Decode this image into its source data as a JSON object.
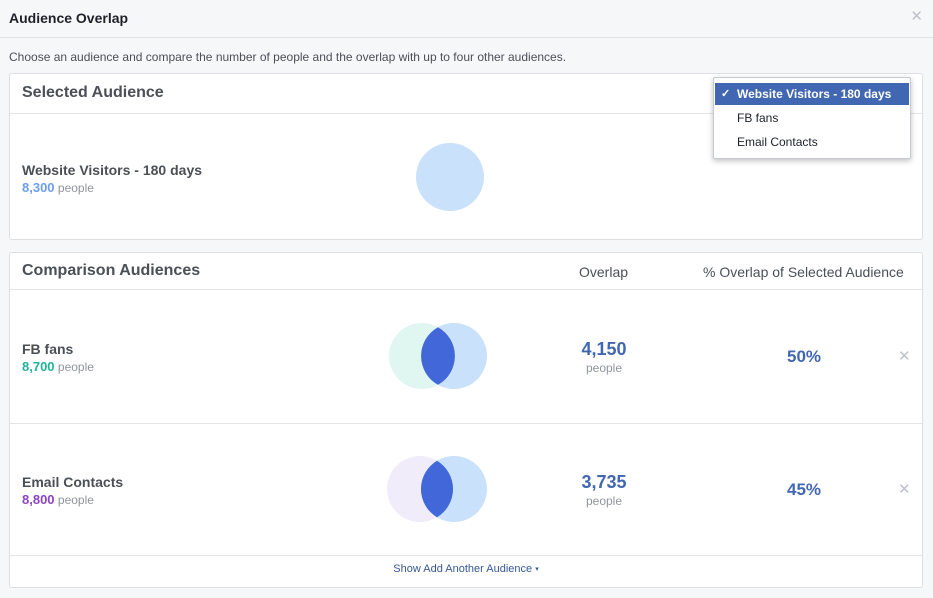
{
  "header": {
    "title": "Audience Overlap",
    "close_icon": "close-icon"
  },
  "intro": "Choose an audience and compare the number of people and the overlap with up to four other audiences.",
  "selected": {
    "title": "Selected Audience",
    "audience": {
      "name": "Website Visitors - 180 days",
      "count": "8,300",
      "unit": "people",
      "color": "#6d9eeb"
    },
    "circle_color": "#c9e1fb"
  },
  "dropdown": {
    "options": [
      {
        "label": "Website Visitors - 180 days",
        "selected": true
      },
      {
        "label": "FB fans",
        "selected": false
      },
      {
        "label": "Email Contacts",
        "selected": false
      }
    ]
  },
  "comparison": {
    "title": "Comparison Audiences",
    "col_overlap": "Overlap",
    "col_pct": "% Overlap of Selected Audience",
    "rows": [
      {
        "name": "FB fans",
        "count": "8,700",
        "unit": "people",
        "color": "#1fb39a",
        "circle_color": "#e0f6f1",
        "overlap": "4,150",
        "overlap_unit": "people",
        "pct": "50%"
      },
      {
        "name": "Email Contacts",
        "count": "8,800",
        "unit": "people",
        "color": "#8b44c4",
        "circle_color": "#f1ecf9",
        "overlap": "3,735",
        "overlap_unit": "people",
        "pct": "45%"
      }
    ],
    "footer_link": "Show Add Another Audience"
  },
  "colors": {
    "accent": "#4267b2",
    "selected_circle": "#c9e1fb",
    "intersection": "#4267d8"
  }
}
